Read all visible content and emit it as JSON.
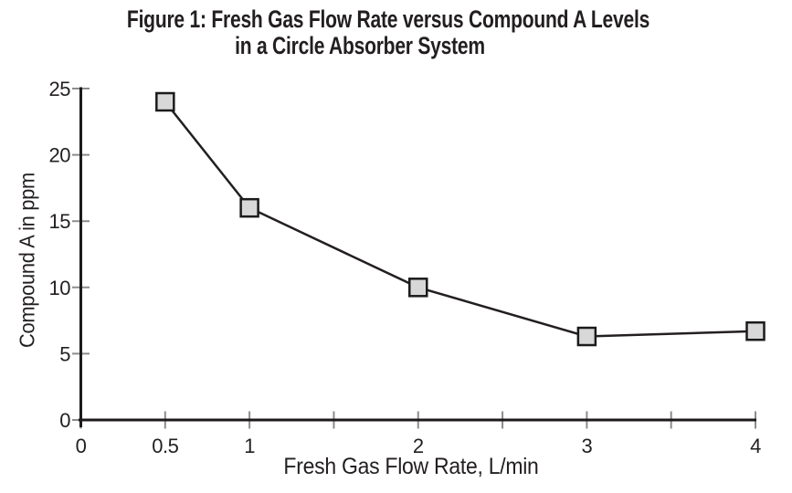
{
  "title": {
    "line1": "Figure 1: Fresh Gas Flow Rate versus Compound A Levels",
    "line2": "in a Circle Absorber System"
  },
  "chart_data": {
    "type": "line",
    "title": "Figure 1: Fresh Gas Flow Rate versus Compound A Levels in a Circle Absorber System",
    "xlabel": "Fresh Gas Flow Rate, L/min",
    "ylabel": "Compound A in ppm",
    "x": [
      0.5,
      1,
      2,
      3,
      4
    ],
    "y": [
      24,
      16,
      10,
      6.3,
      6.7
    ],
    "series_name": "Compound A level",
    "xlim": [
      0,
      4
    ],
    "ylim": [
      0,
      25
    ],
    "x_ticks": [
      0,
      0.5,
      1,
      1.5,
      2,
      2.5,
      3,
      3.5,
      4
    ],
    "x_tick_labels": [
      "0",
      "0.5",
      "1",
      "",
      "2",
      "",
      "3",
      "",
      "4"
    ],
    "y_ticks": [
      0,
      5,
      10,
      15,
      20,
      25
    ],
    "y_tick_labels": [
      "0",
      "5",
      "10",
      "15",
      "20",
      "25"
    ],
    "grid": false,
    "legend": false,
    "marker": "square",
    "colors": {
      "marker_fill": "#d8d8d8",
      "marker_stroke": "#1c1a1b",
      "line": "#231f20",
      "axis": "#1c1a1b",
      "tick": "#8c8c8c",
      "text": "#231f20"
    }
  }
}
